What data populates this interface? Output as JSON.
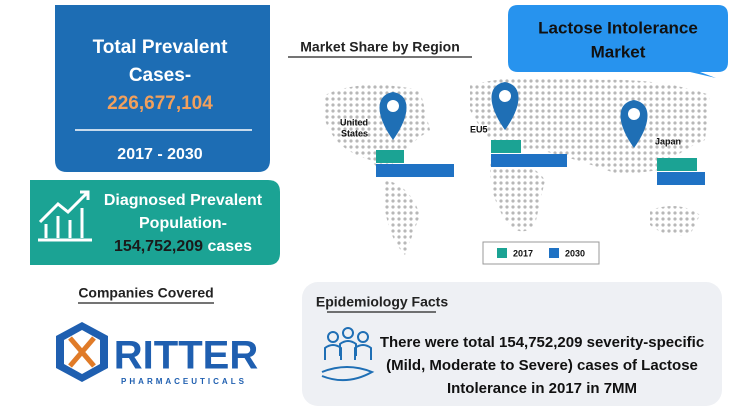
{
  "prevalent": {
    "title_lines": [
      "Total Prevalent",
      "Cases-"
    ],
    "value": "226,677,104",
    "period": "2017 - 2030"
  },
  "diagnosed": {
    "title_lines": [
      "Diagnosed Prevalent",
      "Population-"
    ],
    "value": "154,752,209",
    "suffix": "cases"
  },
  "companies": {
    "title": "Companies Covered",
    "logo_name": "RITTER",
    "logo_sub": "PHARMACEUTICALS"
  },
  "bubble": {
    "lines": [
      "Lactose Intolerance",
      "Market"
    ]
  },
  "market_share": {
    "type": "bar",
    "title": "Market Share by Region",
    "categories": [
      [
        "United",
        "States"
      ],
      [
        "EU5"
      ],
      [
        "Japan"
      ]
    ],
    "series": [
      {
        "name": "2017",
        "color": "#1ba394",
        "values": [
          28,
          30,
          40
        ]
      },
      {
        "name": "2030",
        "color": "#1f72c4",
        "values": [
          78,
          76,
          48
        ]
      }
    ]
  },
  "epidemiology": {
    "title": "Epidemiology Facts",
    "lines": [
      "There were total 154,752,209 severity-specific",
      "(Mild, Moderate to Severe) cases of Lactose",
      "Intolerance in 2017 in 7MM"
    ]
  }
}
